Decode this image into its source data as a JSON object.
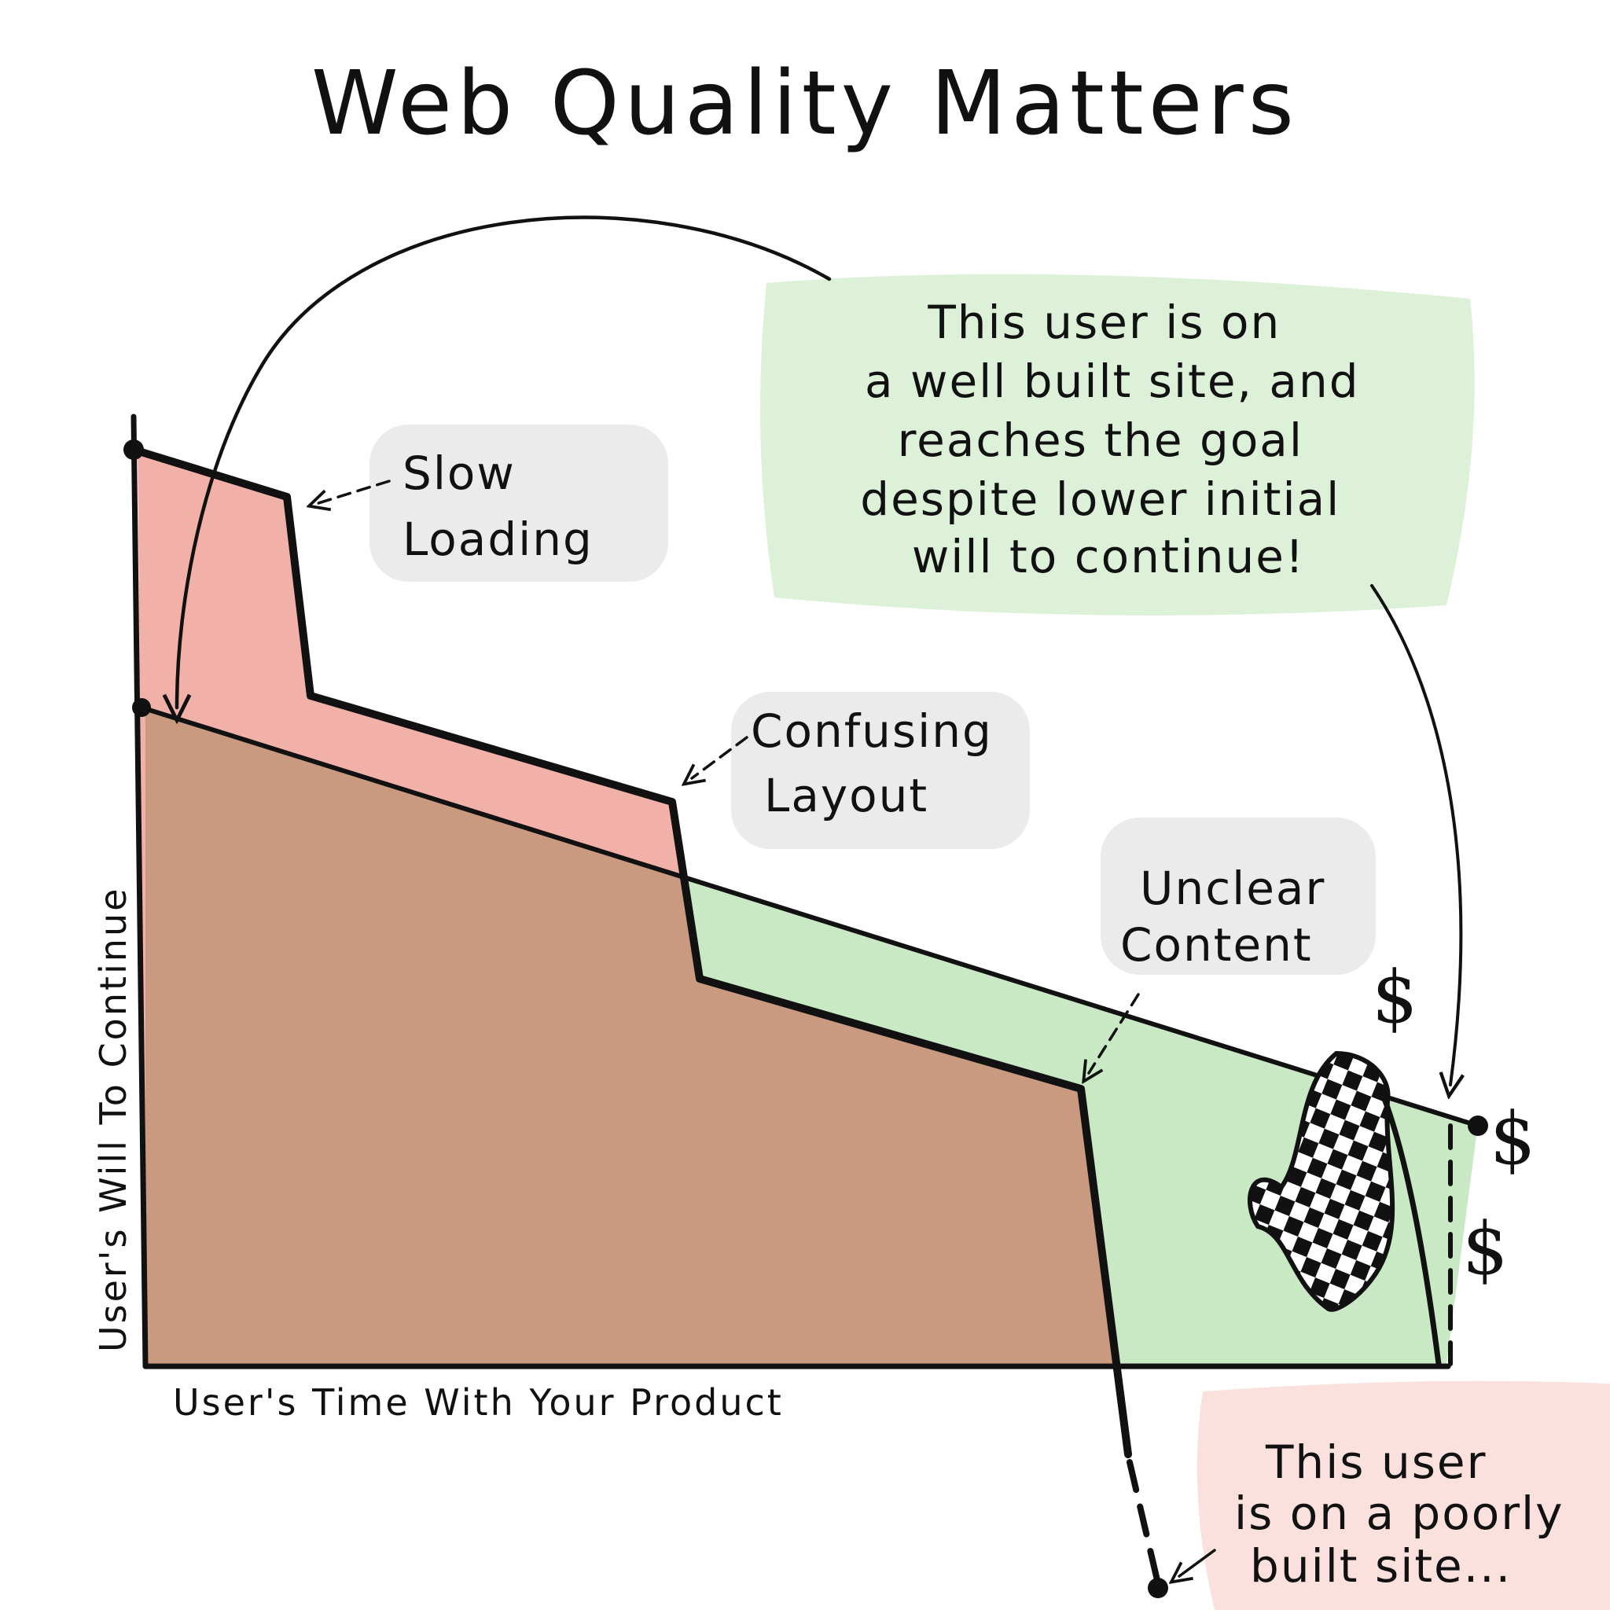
{
  "title": "Web Quality Matters",
  "axes": {
    "y_label": "User's Will To Continue",
    "x_label": "User's Time With Your Product"
  },
  "annotations": {
    "slow_loading": [
      "Slow",
      "Loading"
    ],
    "confusing_layout": [
      "Confusing",
      "Layout"
    ],
    "unclear_content": [
      "Unclear",
      "Content"
    ]
  },
  "good_user_note": [
    "This user is on",
    "a well built site, and",
    "reaches the goal",
    "despite lower initial",
    "will to continue!"
  ],
  "poor_user_note": [
    "This user",
    "is on a poorly",
    "built site..."
  ],
  "dollar_symbol": "$",
  "colors": {
    "poor_site_fill": "#f0a8a0",
    "good_site_fill": "#c9e8c4",
    "overlap_fill": "#c99a80",
    "good_note_bg": "#d7eed2",
    "poor_note_bg": "#fadcd7",
    "label_bg": "#e4e4e4",
    "ink": "#111111"
  },
  "icons": [
    "checkered-flag-icon",
    "dollar-sign-icon"
  ]
}
